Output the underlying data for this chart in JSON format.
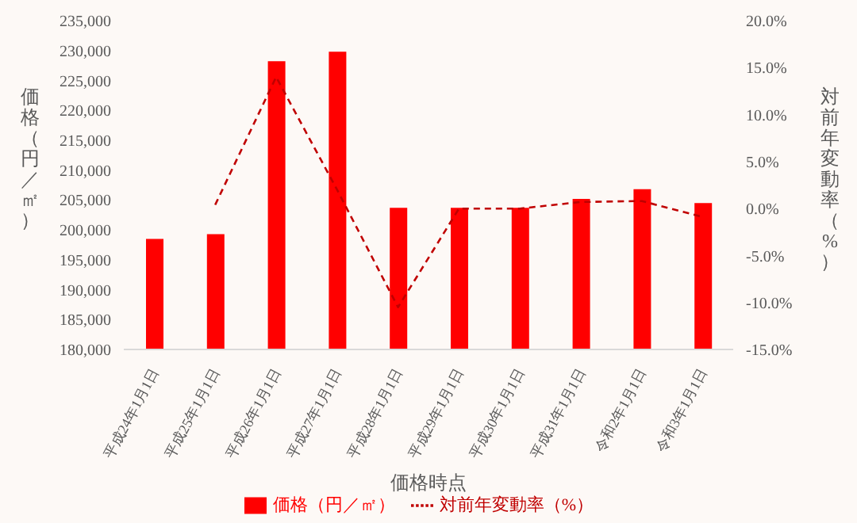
{
  "chart_data": {
    "type": "bar",
    "xlabel": "価格時点",
    "ylabel": "価格（円／㎡）",
    "y2label": "対前年変動率（%）",
    "categories": [
      "平成24年1月1日",
      "平成25年1月1日",
      "平成26年1月1日",
      "平成27年1月1日",
      "平成28年1月1日",
      "平成29年1月1日",
      "平成30年1月1日",
      "平成31年1月1日",
      "令和2年1月1日",
      "令和3年1月1日"
    ],
    "series": [
      {
        "name": "価格（円／㎡）",
        "color": "#ff0000",
        "values": [
          198500,
          199300,
          228200,
          229800,
          203700,
          203700,
          203700,
          205200,
          206800,
          204500
        ]
      },
      {
        "name": "対前年変動率（%）",
        "type": "line",
        "axis": "y2",
        "color": "#c00000",
        "line_style": "dashed",
        "marker": "none",
        "values": [
          null,
          0.4,
          14.0,
          2.0,
          -10.5,
          0.0,
          0.0,
          0.7,
          0.8,
          -0.9
        ]
      }
    ],
    "ylim": [
      180000,
      235000
    ],
    "yticks": [
      {
        "value": 180000,
        "label": "180,000"
      },
      {
        "value": 185000,
        "label": "185,000"
      },
      {
        "value": 190000,
        "label": "190,000"
      },
      {
        "value": 195000,
        "label": "195,000"
      },
      {
        "value": 200000,
        "label": "200,000"
      },
      {
        "value": 205000,
        "label": "205,000"
      },
      {
        "value": 210000,
        "label": "210,000"
      },
      {
        "value": 215000,
        "label": "215,000"
      },
      {
        "value": 220000,
        "label": "220,000"
      },
      {
        "value": 225000,
        "label": "225,000"
      },
      {
        "value": 230000,
        "label": "230,000"
      },
      {
        "value": 235000,
        "label": "235,000"
      }
    ],
    "y2lim": [
      -15,
      20
    ],
    "y2ticks": [
      {
        "value": -15,
        "label": "-15.0%"
      },
      {
        "value": -10,
        "label": "-10.0%"
      },
      {
        "value": -5,
        "label": "-5.0%"
      },
      {
        "value": 0,
        "label": "0.0%"
      },
      {
        "value": 5,
        "label": "5.0%"
      },
      {
        "value": 10,
        "label": "10.0%"
      },
      {
        "value": 15,
        "label": "15.0%"
      },
      {
        "value": 20,
        "label": "20.0%"
      }
    ],
    "legend": "bottom"
  }
}
